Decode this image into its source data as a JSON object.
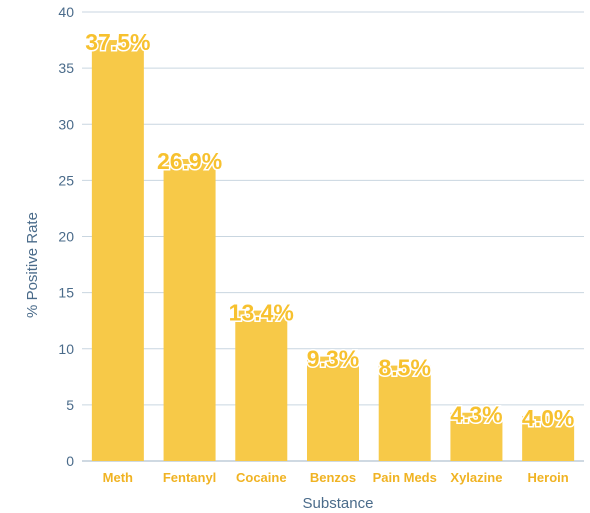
{
  "chart_data": {
    "type": "bar",
    "title": "",
    "xlabel": "Substance",
    "ylabel": "% Positive Rate",
    "categories": [
      "Meth",
      "Fentanyl",
      "Cocaine",
      "Benzos",
      "Pain Meds",
      "Xylazine",
      "Heroin"
    ],
    "values": [
      37.5,
      26.9,
      13.4,
      9.3,
      8.5,
      4.3,
      4.0
    ],
    "value_labels": [
      "37.5%",
      "26.9%",
      "13.4%",
      "9.3%",
      "8.5%",
      "4.3%",
      "4.0%"
    ],
    "ylim": [
      0,
      40
    ],
    "yticks": [
      0,
      5,
      10,
      15,
      20,
      25,
      30,
      35,
      40
    ],
    "grid": true,
    "colors": {
      "bar": "#f7c948",
      "value_label": "#f7c12e",
      "category_label": "#f0b323",
      "axis_text": "#4a6b8a",
      "grid": "#c9d6e0"
    }
  }
}
